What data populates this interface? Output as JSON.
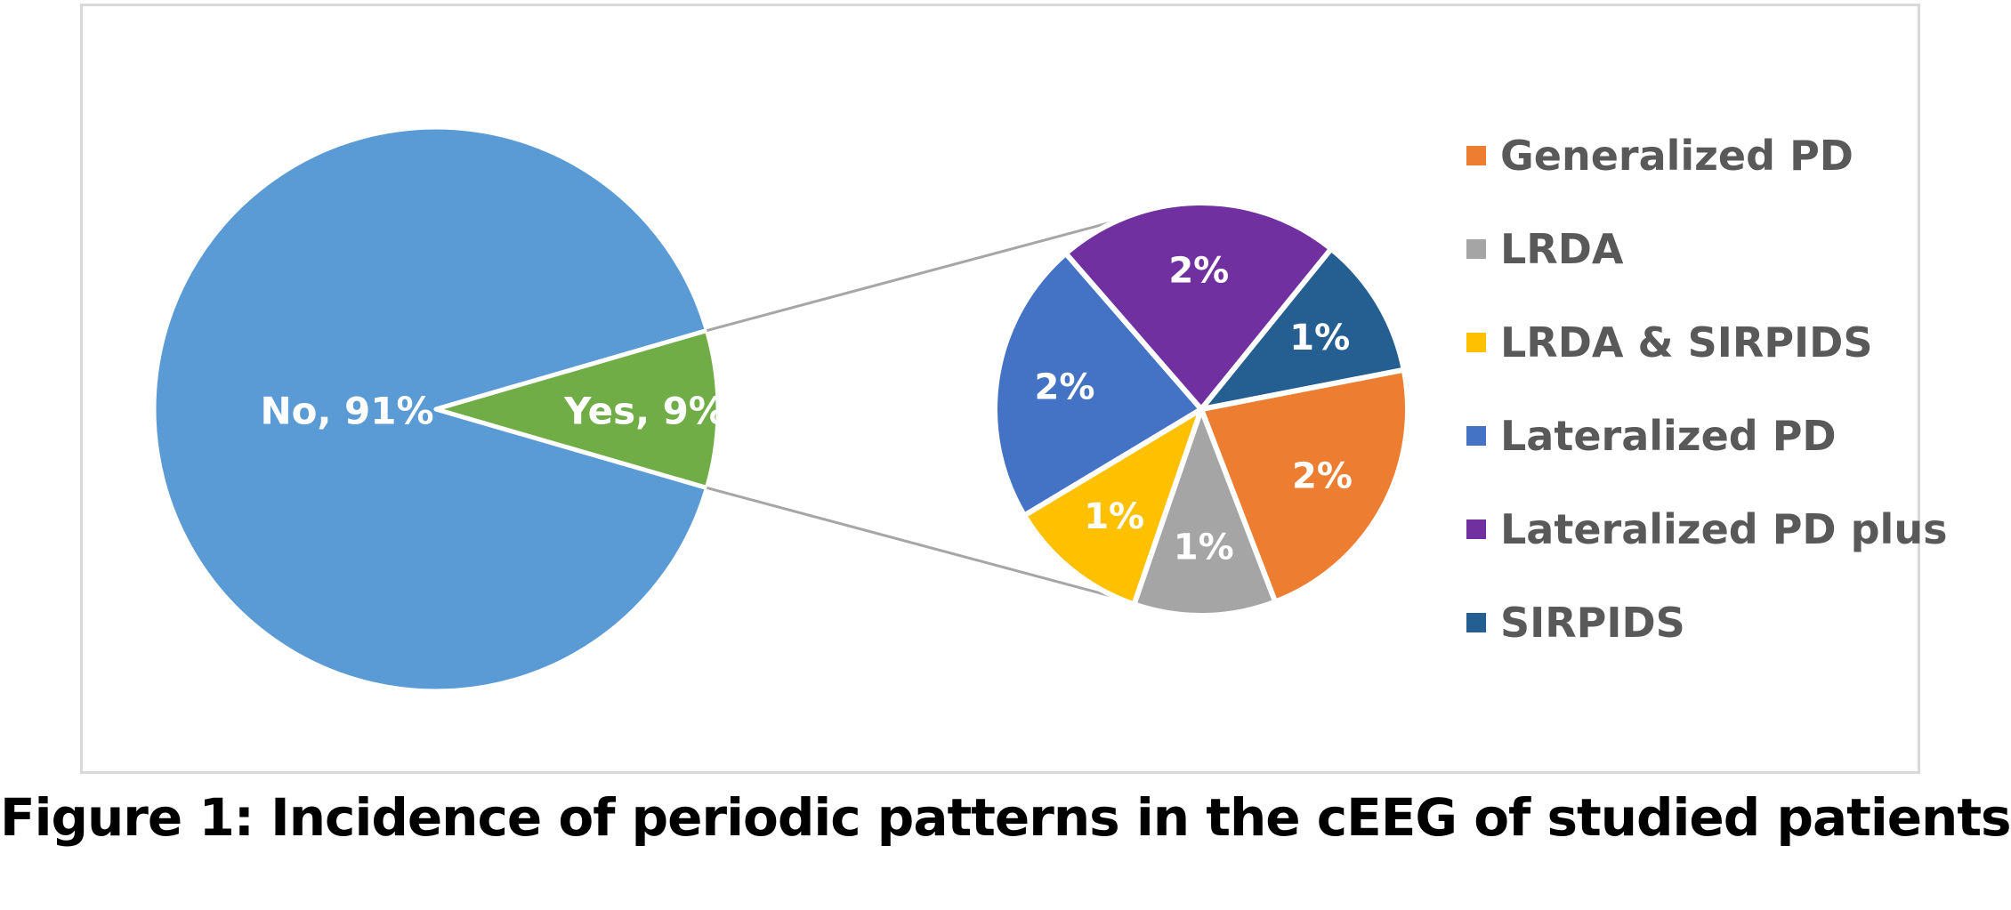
{
  "chart_data": {
    "type": "pie",
    "subtype": "pie-of-pie",
    "main_pie": {
      "slices": [
        {
          "label": "No",
          "value": 91,
          "label_text": "No, 91%",
          "color": "#5b9bd5"
        },
        {
          "label": "Yes",
          "value": 9,
          "label_text": "Yes, 9%",
          "color": "#70ad47"
        }
      ]
    },
    "secondary_pie": {
      "breakdown_of": "Yes",
      "slices": [
        {
          "label": "Generalized PD",
          "value": 2,
          "label_text": "2%",
          "color": "#ed7d31"
        },
        {
          "label": "LRDA",
          "value": 1,
          "label_text": "1%",
          "color": "#a5a5a5"
        },
        {
          "label": "LRDA & SIRPIDS",
          "value": 1,
          "label_text": "1%",
          "color": "#ffc000"
        },
        {
          "label": "Lateralized PD",
          "value": 2,
          "label_text": "2%",
          "color": "#4472c4"
        },
        {
          "label": "Lateralized PD plus",
          "value": 2,
          "label_text": "2%",
          "color": "#7030a0"
        },
        {
          "label": "SIRPIDS",
          "value": 1,
          "label_text": "1%",
          "color": "#255e91"
        }
      ]
    },
    "legend": {
      "position": "right",
      "entries": [
        "Generalized PD",
        "LRDA",
        "LRDA & SIRPIDS",
        "Lateralized PD",
        "Lateralized PD plus",
        "SIRPIDS"
      ]
    },
    "connector_color": "#a6a6a6"
  },
  "caption": "Figure 1: Incidence of periodic patterns in the cEEG of studied patients"
}
